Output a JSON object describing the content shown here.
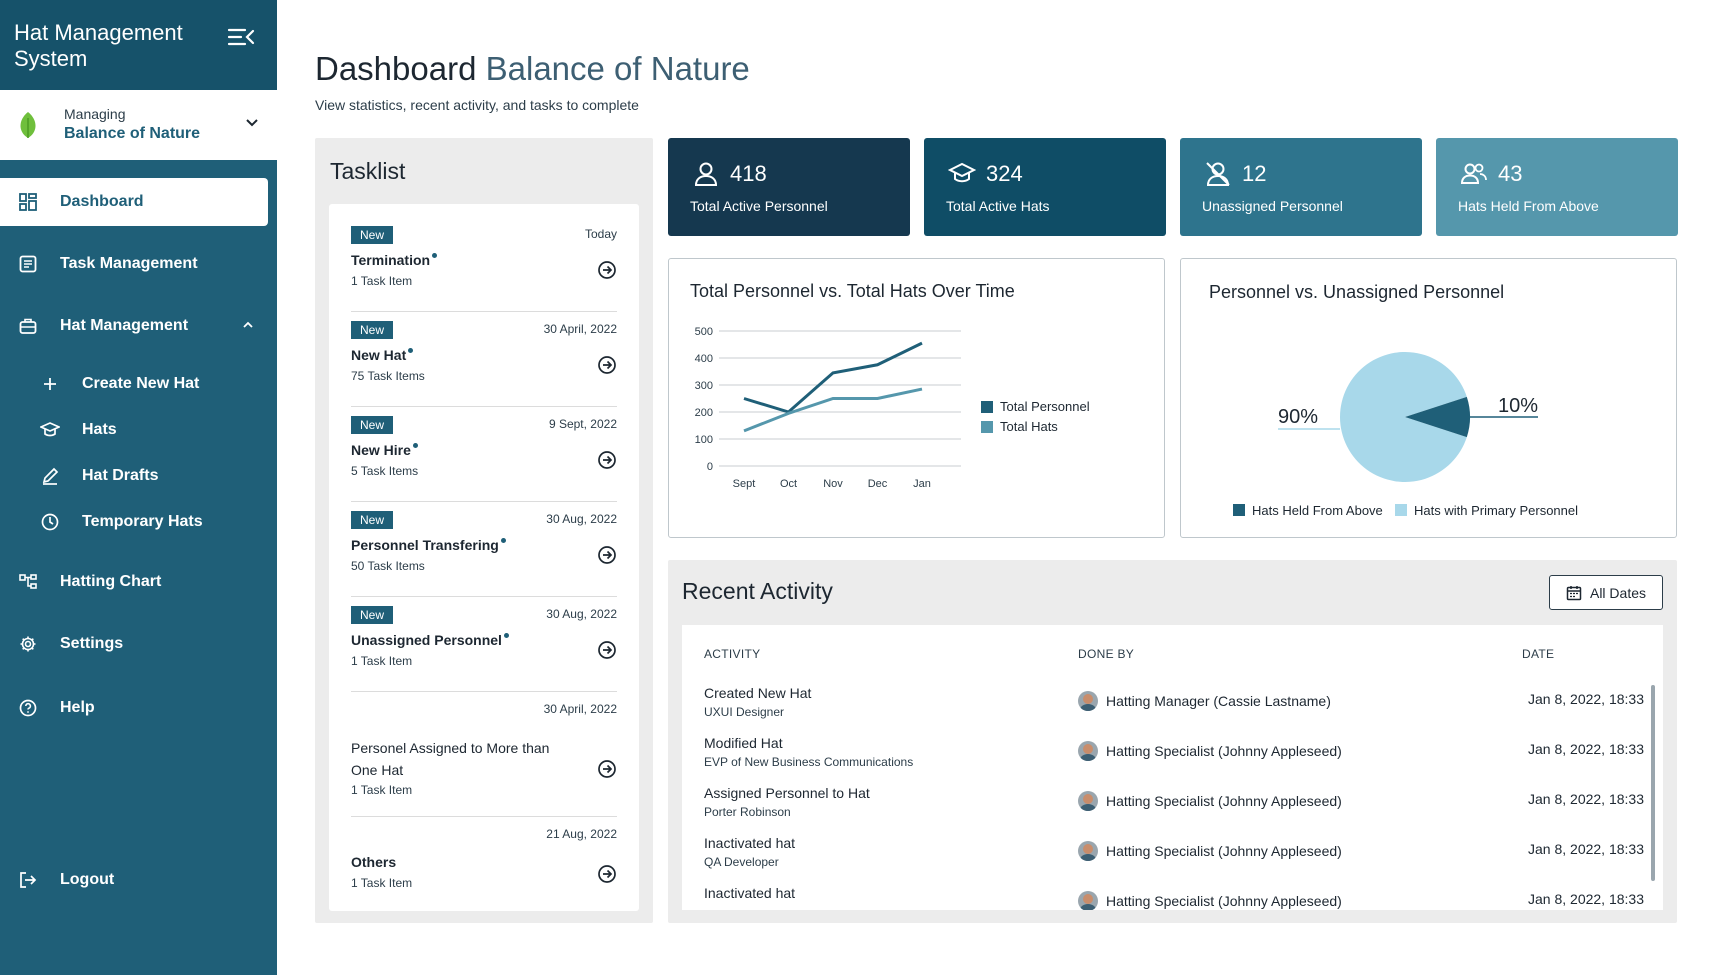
{
  "sidebar": {
    "app_title": "Hat Management System",
    "managing_label": "Managing",
    "managing_value": "Balance of Nature",
    "items": [
      {
        "label": "Dashboard"
      },
      {
        "label": "Task Management"
      },
      {
        "label": "Hat Management"
      },
      {
        "label": "Create New Hat"
      },
      {
        "label": "Hats"
      },
      {
        "label": "Hat Drafts"
      },
      {
        "label": "Temporary Hats"
      },
      {
        "label": "Hatting Chart"
      },
      {
        "label": "Settings"
      },
      {
        "label": "Help"
      },
      {
        "label": "Logout"
      }
    ]
  },
  "header": {
    "title_main": "Dashboard",
    "title_accent": "Balance of Nature",
    "subtitle": "View statistics, recent activity, and tasks to complete"
  },
  "tasklist": {
    "title": "Tasklist",
    "tasks": [
      {
        "badge": "New",
        "date": "Today",
        "name": "Termination",
        "count": "1 Task Item"
      },
      {
        "badge": "New",
        "date": "30 April, 2022",
        "name": "New Hat",
        "count": "75 Task Items"
      },
      {
        "badge": "New",
        "date": "9 Sept, 2022",
        "name": "New Hire",
        "count": "5 Task Items"
      },
      {
        "badge": "New",
        "date": "30 Aug, 2022",
        "name": "Personnel Transfering",
        "count": "50 Task Items"
      },
      {
        "badge": "New",
        "date": "30 Aug, 2022",
        "name": "Unassigned Personnel",
        "count": "1 Task Item"
      },
      {
        "badge": "",
        "date": "30 April, 2022",
        "name": "Personel Assigned to More than One Hat",
        "count": "1 Task Item"
      },
      {
        "badge": "",
        "date": "21 Aug, 2022",
        "name": "Others",
        "count": "1 Task Item"
      }
    ]
  },
  "stats": [
    {
      "value": "418",
      "label": "Total Active Personnel",
      "color": "#15384f",
      "icon": "person-icon"
    },
    {
      "value": "324",
      "label": "Total Active Hats",
      "color": "#0f4d66",
      "icon": "graduation-cap-icon"
    },
    {
      "value": "12",
      "label": "Unassigned Personnel",
      "color": "#2e748d",
      "icon": "person-off-icon"
    },
    {
      "value": "43",
      "label": "Hats Held From Above",
      "color": "#5597ac",
      "icon": "people-icon"
    }
  ],
  "chart_data": [
    {
      "type": "line",
      "title": "Total Personnel vs. Total Hats Over Time",
      "categories": [
        "Sept",
        "Oct",
        "Nov",
        "Dec",
        "Jan"
      ],
      "ylim": [
        0,
        500
      ],
      "yticks": [
        "500",
        "400",
        "300",
        "200",
        "100",
        "0"
      ],
      "grid": true,
      "legend_position": "right",
      "series": [
        {
          "name": "Total Personnel",
          "values": [
            250,
            200,
            345,
            375,
            455
          ],
          "color": "#1f5f78"
        },
        {
          "name": "Total Hats",
          "values": [
            130,
            195,
            250,
            250,
            285
          ],
          "color": "#5597ac"
        }
      ]
    },
    {
      "type": "pie",
      "title": "Personnel vs. Unassigned Personnel",
      "labels": [
        "Hats Held From Above",
        "Hats with Primary Personnel"
      ],
      "values": [
        10,
        90
      ],
      "display": [
        "10%",
        "90%"
      ],
      "colors": [
        "#1f5f78",
        "#a8d8ea"
      ],
      "legend_position": "bottom"
    }
  ],
  "recent": {
    "title": "Recent Activity",
    "filter_label": "All Dates",
    "columns": [
      "ACTIVITY",
      "DONE BY",
      "DATE"
    ],
    "rows": [
      {
        "title": "Created New Hat",
        "sub": "UXUI Designer",
        "by": "Hatting Manager (Cassie Lastname)",
        "date": "Jan 8, 2022, 18:33"
      },
      {
        "title": "Modified Hat",
        "sub": "EVP of New Business Communications",
        "by": "Hatting Specialist (Johnny Appleseed)",
        "date": "Jan 8, 2022, 18:33"
      },
      {
        "title": "Assigned Personnel to Hat",
        "sub": "Porter Robinson",
        "by": "Hatting Specialist (Johnny Appleseed)",
        "date": "Jan 8, 2022, 18:33"
      },
      {
        "title": "Inactivated hat",
        "sub": "QA Developer",
        "by": "Hatting Specialist (Johnny Appleseed)",
        "date": "Jan 8, 2022, 18:33"
      },
      {
        "title": "Inactivated hat",
        "sub": "",
        "by": "Hatting Specialist (Johnny Appleseed)",
        "date": "Jan 8, 2022, 18:33"
      }
    ]
  }
}
